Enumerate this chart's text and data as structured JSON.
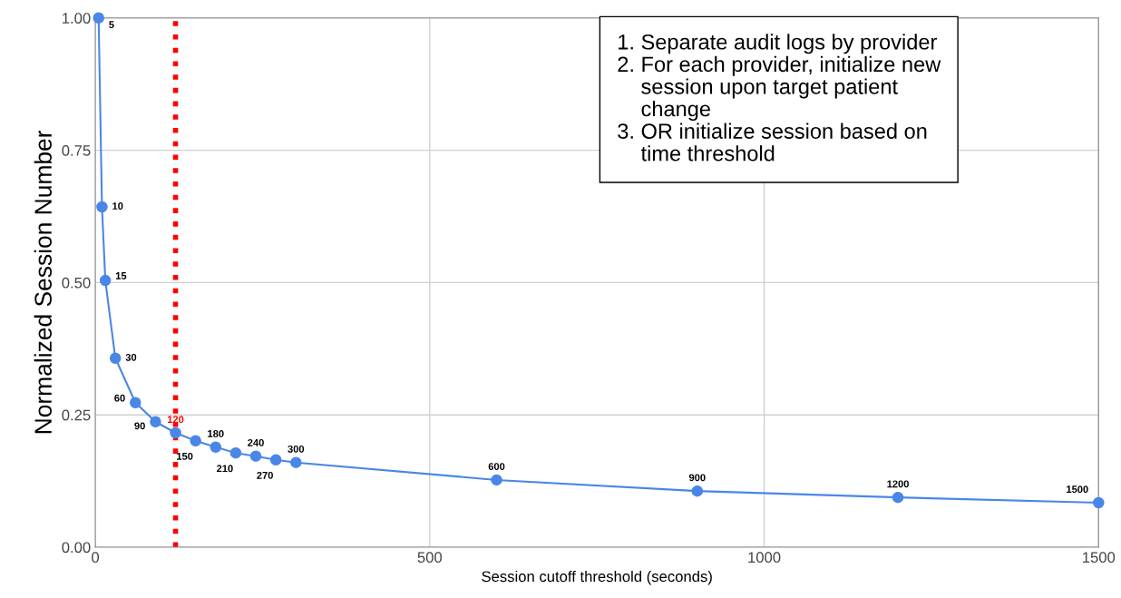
{
  "chart_data": {
    "type": "line",
    "xlabel": "Session cutoff threshold (seconds)",
    "ylabel": "Normalized Session Number",
    "x": [
      5,
      10,
      15,
      30,
      60,
      90,
      120,
      150,
      180,
      210,
      240,
      270,
      300,
      600,
      900,
      1200,
      1500
    ],
    "series": [
      {
        "color": "#4a86e8",
        "values": [
          1.0,
          0.643,
          0.504,
          0.357,
          0.273,
          0.237,
          0.216,
          0.201,
          0.189,
          0.178,
          0.172,
          0.165,
          0.16,
          0.127,
          0.106,
          0.094,
          0.084
        ]
      }
    ],
    "marker": "circle",
    "line_style": "solid",
    "xlim": [
      0,
      1500
    ],
    "xticks": [
      0,
      500,
      1000,
      1500
    ],
    "ylim": [
      0,
      1
    ],
    "yticks": [
      {
        "value": 0,
        "label": "0.00"
      },
      {
        "value": 0.25,
        "label": "0.25"
      },
      {
        "value": 0.5,
        "label": "0.50"
      },
      {
        "value": 0.75,
        "label": "0.75"
      },
      {
        "value": 1,
        "label": "1.00"
      }
    ],
    "grid": true,
    "legend": false,
    "ref_lines": [
      {
        "axis": "x",
        "value": 120,
        "color": "#ff0000",
        "line_style": "dotted"
      }
    ],
    "annotations": [
      "1. Separate audit logs by provider\n2. For each provider, initialize new\n    session upon target patient\n    change\n3. OR initialize session based on\n    time threshold",
      {
        "text": "5",
        "x": 5,
        "y": 1.0
      },
      {
        "text": "10",
        "x": 10,
        "y": 0.643
      },
      {
        "text": "15",
        "x": 15,
        "y": 0.504
      },
      {
        "text": "30",
        "x": 30,
        "y": 0.357
      },
      {
        "text": "60",
        "x": 60,
        "y": 0.273
      },
      {
        "text": "90",
        "x": 90,
        "y": 0.237
      },
      {
        "text": "120",
        "x": 120,
        "y": 0.216
      },
      {
        "text": "150",
        "x": 150,
        "y": 0.201
      },
      {
        "text": "180",
        "x": 180,
        "y": 0.189
      },
      {
        "text": "210",
        "x": 210,
        "y": 0.178
      },
      {
        "text": "240",
        "x": 240,
        "y": 0.172
      },
      {
        "text": "270",
        "x": 270,
        "y": 0.165
      },
      {
        "text": "300",
        "x": 300,
        "y": 0.16
      },
      {
        "text": "600",
        "x": 600,
        "y": 0.127
      },
      {
        "text": "900",
        "x": 900,
        "y": 0.106
      },
      {
        "text": "1200",
        "x": 1200,
        "y": 0.094
      },
      {
        "text": "1500",
        "x": 1500,
        "y": 0.084
      }
    ]
  }
}
